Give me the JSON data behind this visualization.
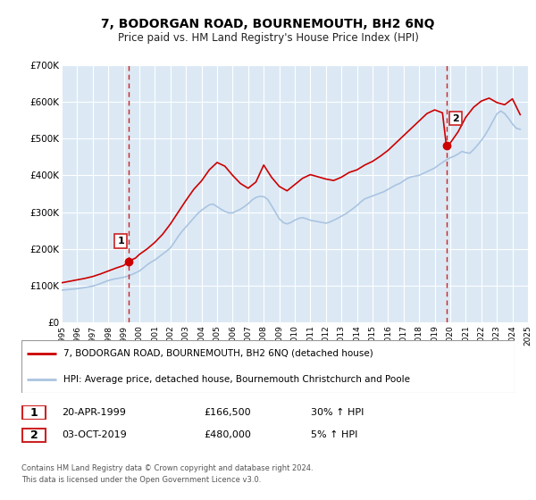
{
  "title": "7, BODORGAN ROAD, BOURNEMOUTH, BH2 6NQ",
  "subtitle": "Price paid vs. HM Land Registry's House Price Index (HPI)",
  "background_color": "#ffffff",
  "plot_bg_color": "#dce9f5",
  "grid_color": "#ffffff",
  "ylim": [
    0,
    700000
  ],
  "yticks": [
    0,
    100000,
    200000,
    300000,
    400000,
    500000,
    600000,
    700000
  ],
  "ytick_labels": [
    "£0",
    "£100K",
    "£200K",
    "£300K",
    "£400K",
    "£500K",
    "£600K",
    "£700K"
  ],
  "xmin_year": 1995,
  "xmax_year": 2025,
  "xticks": [
    1995,
    1996,
    1997,
    1998,
    1999,
    2000,
    2001,
    2002,
    2003,
    2004,
    2005,
    2006,
    2007,
    2008,
    2009,
    2010,
    2011,
    2012,
    2013,
    2014,
    2015,
    2016,
    2017,
    2018,
    2019,
    2020,
    2021,
    2022,
    2023,
    2024,
    2025
  ],
  "hpi_line_color": "#aac4e0",
  "price_line_color": "#cc0000",
  "marker_color": "#cc0000",
  "vline_color": "#cc2222",
  "sale1_x": 1999.3,
  "sale1_y": 166500,
  "sale2_x": 2019.75,
  "sale2_y": 480000,
  "legend_line1": "7, BODORGAN ROAD, BOURNEMOUTH, BH2 6NQ (detached house)",
  "legend_line2": "HPI: Average price, detached house, Bournemouth Christchurch and Poole",
  "info1_num": "1",
  "info1_date": "20-APR-1999",
  "info1_price": "£166,500",
  "info1_hpi": "30% ↑ HPI",
  "info2_num": "2",
  "info2_date": "03-OCT-2019",
  "info2_price": "£480,000",
  "info2_hpi": "5% ↑ HPI",
  "footnote1": "Contains HM Land Registry data © Crown copyright and database right 2024.",
  "footnote2": "This data is licensed under the Open Government Licence v3.0.",
  "hpi_data_x": [
    1995.0,
    1995.25,
    1995.5,
    1995.75,
    1996.0,
    1996.25,
    1996.5,
    1996.75,
    1997.0,
    1997.25,
    1997.5,
    1997.75,
    1998.0,
    1998.25,
    1998.5,
    1998.75,
    1999.0,
    1999.25,
    1999.5,
    1999.75,
    2000.0,
    2000.25,
    2000.5,
    2000.75,
    2001.0,
    2001.25,
    2001.5,
    2001.75,
    2002.0,
    2002.25,
    2002.5,
    2002.75,
    2003.0,
    2003.25,
    2003.5,
    2003.75,
    2004.0,
    2004.25,
    2004.5,
    2004.75,
    2005.0,
    2005.25,
    2005.5,
    2005.75,
    2006.0,
    2006.25,
    2006.5,
    2006.75,
    2007.0,
    2007.25,
    2007.5,
    2007.75,
    2008.0,
    2008.25,
    2008.5,
    2008.75,
    2009.0,
    2009.25,
    2009.5,
    2009.75,
    2010.0,
    2010.25,
    2010.5,
    2010.75,
    2011.0,
    2011.25,
    2011.5,
    2011.75,
    2012.0,
    2012.25,
    2012.5,
    2012.75,
    2013.0,
    2013.25,
    2013.5,
    2013.75,
    2014.0,
    2014.25,
    2014.5,
    2014.75,
    2015.0,
    2015.25,
    2015.5,
    2015.75,
    2016.0,
    2016.25,
    2016.5,
    2016.75,
    2017.0,
    2017.25,
    2017.5,
    2017.75,
    2018.0,
    2018.25,
    2018.5,
    2018.75,
    2019.0,
    2019.25,
    2019.5,
    2019.75,
    2020.0,
    2020.25,
    2020.5,
    2020.75,
    2021.0,
    2021.25,
    2021.5,
    2021.75,
    2022.0,
    2022.25,
    2022.5,
    2022.75,
    2023.0,
    2023.25,
    2023.5,
    2023.75,
    2024.0,
    2024.25,
    2024.5
  ],
  "hpi_data_y": [
    88000,
    89000,
    90000,
    91000,
    92000,
    93500,
    95000,
    97000,
    99000,
    102000,
    106000,
    110000,
    114000,
    117000,
    119000,
    121000,
    123000,
    126000,
    130000,
    135000,
    140000,
    148000,
    157000,
    164000,
    170000,
    178000,
    186000,
    194000,
    203000,
    218000,
    234000,
    248000,
    260000,
    272000,
    284000,
    296000,
    305000,
    313000,
    320000,
    322000,
    315000,
    308000,
    302000,
    298000,
    298000,
    303000,
    308000,
    315000,
    323000,
    333000,
    340000,
    343000,
    342000,
    335000,
    318000,
    300000,
    282000,
    272000,
    268000,
    272000,
    278000,
    283000,
    285000,
    282000,
    278000,
    276000,
    274000,
    272000,
    270000,
    273000,
    278000,
    283000,
    289000,
    295000,
    302000,
    310000,
    318000,
    328000,
    336000,
    340000,
    344000,
    348000,
    352000,
    356000,
    362000,
    368000,
    374000,
    378000,
    385000,
    392000,
    396000,
    398000,
    400000,
    405000,
    410000,
    415000,
    420000,
    428000,
    435000,
    442000,
    448000,
    452000,
    458000,
    465000,
    462000,
    460000,
    470000,
    482000,
    495000,
    510000,
    528000,
    548000,
    567000,
    575000,
    568000,
    555000,
    540000,
    528000,
    525000
  ],
  "price_data_x": [
    1995.0,
    1995.5,
    1996.0,
    1996.5,
    1997.0,
    1997.5,
    1998.0,
    1998.5,
    1999.0,
    1999.3,
    1999.75,
    2000.0,
    2000.5,
    2001.0,
    2001.5,
    2002.0,
    2002.5,
    2003.0,
    2003.5,
    2004.0,
    2004.5,
    2005.0,
    2005.5,
    2006.0,
    2006.5,
    2007.0,
    2007.5,
    2008.0,
    2008.5,
    2009.0,
    2009.5,
    2010.0,
    2010.5,
    2011.0,
    2011.5,
    2012.0,
    2012.5,
    2013.0,
    2013.5,
    2014.0,
    2014.5,
    2015.0,
    2015.5,
    2016.0,
    2016.5,
    2017.0,
    2017.5,
    2018.0,
    2018.5,
    2019.0,
    2019.5,
    2019.75,
    2020.0,
    2020.5,
    2021.0,
    2021.5,
    2022.0,
    2022.5,
    2023.0,
    2023.5,
    2024.0,
    2024.5
  ],
  "price_data_y": [
    108000,
    112000,
    116000,
    120000,
    125000,
    132000,
    140000,
    148000,
    155000,
    166500,
    175000,
    185000,
    200000,
    218000,
    240000,
    268000,
    300000,
    332000,
    362000,
    385000,
    415000,
    435000,
    425000,
    400000,
    378000,
    365000,
    382000,
    428000,
    395000,
    370000,
    358000,
    375000,
    392000,
    402000,
    396000,
    390000,
    386000,
    395000,
    408000,
    415000,
    428000,
    438000,
    452000,
    468000,
    488000,
    508000,
    528000,
    548000,
    568000,
    578000,
    570000,
    480000,
    488000,
    518000,
    558000,
    585000,
    602000,
    610000,
    598000,
    592000,
    608000,
    565000
  ]
}
